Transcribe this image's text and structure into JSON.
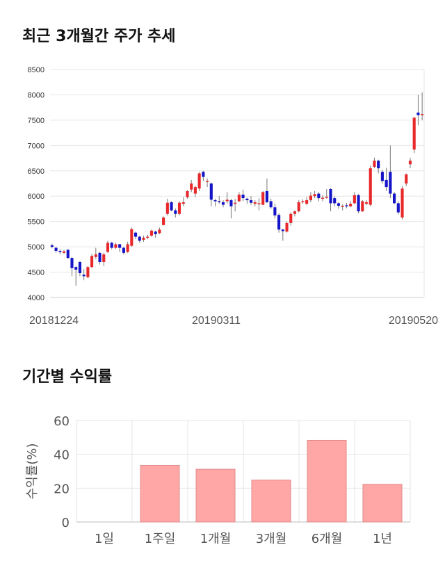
{
  "sections": {
    "price_title": "최근 3개월간 주가 추세",
    "returns_title": "기간별 수익률"
  },
  "chart_data": [
    {
      "type": "candlestick",
      "title": "최근 3개월간 주가 추세",
      "ylim": [
        4000,
        8500
      ],
      "yticks": [
        4000,
        4500,
        5000,
        5500,
        6000,
        6500,
        7000,
        7500,
        8000,
        8500
      ],
      "x_labels": [
        "20181224",
        "20190311",
        "20190520"
      ],
      "colors": {
        "up": "#e8282b",
        "down": "#1414c8",
        "wick": "#777777",
        "grid": "#e6e6e6"
      },
      "candles": [
        [
          5030,
          5000,
          5060,
          4970
        ],
        [
          4980,
          4920,
          5000,
          4880
        ],
        [
          4920,
          4900,
          4950,
          4850
        ],
        [
          4880,
          4910,
          4940,
          4860
        ],
        [
          4940,
          4780,
          4960,
          4760
        ],
        [
          4780,
          4580,
          4800,
          4420
        ],
        [
          4600,
          4550,
          4620,
          4230
        ],
        [
          4700,
          4480,
          4720,
          4420
        ],
        [
          4450,
          4420,
          4560,
          4340
        ],
        [
          4400,
          4600,
          4620,
          4380
        ],
        [
          4600,
          4820,
          4860,
          4580
        ],
        [
          4800,
          4850,
          4980,
          4760
        ],
        [
          4880,
          4700,
          4900,
          4650
        ],
        [
          4700,
          4850,
          4880,
          4620
        ],
        [
          4900,
          5080,
          5120,
          4880
        ],
        [
          5080,
          4980,
          5100,
          4950
        ],
        [
          4980,
          5050,
          5080,
          4960
        ],
        [
          5050,
          4980,
          5060,
          4900
        ],
        [
          4980,
          4880,
          5000,
          4850
        ],
        [
          4900,
          5050,
          5100,
          4880
        ],
        [
          5020,
          5350,
          5380,
          5000
        ],
        [
          5280,
          5200,
          5300,
          5150
        ],
        [
          5200,
          5120,
          5220,
          5080
        ],
        [
          5140,
          5180,
          5220,
          5100
        ],
        [
          5180,
          5200,
          5240,
          5150
        ],
        [
          5220,
          5320,
          5340,
          5200
        ],
        [
          5300,
          5250,
          5320,
          5180
        ],
        [
          5270,
          5340,
          5380,
          5250
        ],
        [
          5430,
          5580,
          5600,
          5420
        ],
        [
          5650,
          5870,
          5950,
          5620
        ],
        [
          5880,
          5720,
          5900,
          5700
        ],
        [
          5720,
          5650,
          5760,
          5580
        ],
        [
          5650,
          5870,
          5900,
          5620
        ],
        [
          5850,
          5880,
          5980,
          5800
        ],
        [
          5980,
          6100,
          6120,
          5950
        ],
        [
          6130,
          6250,
          6320,
          6080
        ],
        [
          6050,
          6180,
          6200,
          5980
        ],
        [
          6150,
          6450,
          6480,
          6100
        ],
        [
          6480,
          6380,
          6500,
          6300
        ],
        [
          6280,
          6300,
          6350,
          6180
        ],
        [
          6250,
          5930,
          6270,
          5800
        ],
        [
          5920,
          5900,
          5950,
          5800
        ],
        [
          5900,
          5880,
          6000,
          5850
        ],
        [
          5880,
          5830,
          5920,
          5780
        ],
        [
          5900,
          5930,
          6080,
          5850
        ],
        [
          5920,
          5800,
          5950,
          5560
        ],
        [
          5850,
          5870,
          5950,
          5700
        ],
        [
          5900,
          6030,
          6080,
          5880
        ],
        [
          6030,
          5960,
          6130,
          5900
        ],
        [
          5950,
          5920,
          5970,
          5850
        ],
        [
          5920,
          5870,
          6000,
          5830
        ],
        [
          5850,
          5880,
          5920,
          5800
        ],
        [
          5850,
          5860,
          5960,
          5720
        ],
        [
          5830,
          6080,
          6100,
          5820
        ],
        [
          6100,
          5880,
          6350,
          5860
        ],
        [
          5900,
          5780,
          5950,
          5750
        ],
        [
          5780,
          5620,
          5850,
          5560
        ],
        [
          5630,
          5340,
          5660,
          5280
        ],
        [
          5340,
          5310,
          5360,
          5120
        ],
        [
          5300,
          5470,
          5500,
          5280
        ],
        [
          5470,
          5650,
          5680,
          5420
        ],
        [
          5650,
          5700,
          5720,
          5600
        ],
        [
          5700,
          5880,
          5920,
          5680
        ],
        [
          5880,
          5900,
          5940,
          5850
        ],
        [
          5850,
          5920,
          5980,
          5820
        ],
        [
          5920,
          6010,
          6080,
          5880
        ],
        [
          6000,
          6040,
          6100,
          5960
        ],
        [
          6050,
          5960,
          6080,
          5900
        ],
        [
          5950,
          5970,
          6020,
          5900
        ],
        [
          5980,
          5990,
          6140,
          5950
        ],
        [
          6140,
          5860,
          6160,
          5700
        ],
        [
          5960,
          5860,
          6000,
          5800
        ],
        [
          5860,
          5810,
          5880,
          5750
        ],
        [
          5810,
          5810,
          5840,
          5720
        ],
        [
          5820,
          5800,
          5870,
          5760
        ],
        [
          5800,
          5850,
          5900,
          5780
        ],
        [
          5860,
          6020,
          6080,
          5840
        ],
        [
          6020,
          5700,
          6040,
          5660
        ],
        [
          5700,
          5900,
          5920,
          5690
        ],
        [
          5850,
          5880,
          5920,
          5820
        ],
        [
          5830,
          6550,
          6600,
          5800
        ],
        [
          6580,
          6700,
          6760,
          6550
        ],
        [
          6700,
          6550,
          6720,
          6450
        ],
        [
          6480,
          6300,
          6520,
          6250
        ],
        [
          6320,
          6180,
          6560,
          6100
        ],
        [
          6480,
          6050,
          7000,
          5960
        ],
        [
          6050,
          5860,
          6080,
          5850
        ],
        [
          5860,
          5680,
          5900,
          5640
        ],
        [
          5580,
          6150,
          6200,
          5540
        ],
        [
          6250,
          6430,
          6450,
          6200
        ],
        [
          6630,
          6700,
          6760,
          6550
        ],
        [
          6920,
          7550,
          7550,
          6850
        ],
        [
          7650,
          7600,
          8000,
          7400
        ],
        [
          7600,
          7620,
          8050,
          7500
        ]
      ]
    },
    {
      "type": "bar",
      "title": "기간별 수익률",
      "ylabel": "수익률(%)",
      "ylim": [
        0,
        60
      ],
      "yticks": [
        0,
        20,
        40,
        60
      ],
      "categories": [
        "1일",
        "1주일",
        "1개월",
        "3개월",
        "6개월",
        "1년"
      ],
      "values": [
        0,
        33.5,
        31.2,
        24.8,
        48.3,
        22.3
      ],
      "colors": {
        "bar": "#ffa6a6",
        "bar_edge": "#e08a8a",
        "grid": "#e6e6e6"
      }
    }
  ]
}
